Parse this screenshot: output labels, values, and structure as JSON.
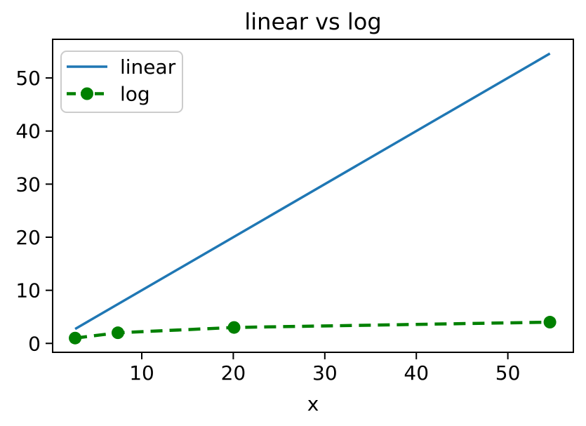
{
  "figure": {
    "background": "#ffffff",
    "frame_color": "#000000"
  },
  "chart_data": {
    "type": "line",
    "title": "linear vs log",
    "xlabel": "x",
    "ylabel": "",
    "x": [
      2.7183,
      7.3891,
      20.0855,
      54.5982
    ],
    "series": [
      {
        "name": "linear",
        "values": [
          2.7183,
          7.3891,
          20.0855,
          54.5982
        ],
        "color": "#1f77b4",
        "style": "solid",
        "marker": "none",
        "line_width": 3.5
      },
      {
        "name": "log",
        "values": [
          1,
          2,
          3,
          4
        ],
        "color": "#008000",
        "style": "dashed",
        "marker": "circle",
        "marker_size": 9,
        "line_width": 4.5
      }
    ],
    "xlim": [
      0.26,
      57.16
    ],
    "ylim": [
      -1.68,
      57.28
    ],
    "xticks": [
      10,
      20,
      30,
      40,
      50
    ],
    "yticks": [
      0,
      10,
      20,
      30,
      40,
      50
    ],
    "grid": false,
    "legend": {
      "position": "upper-left",
      "entries": [
        "linear",
        "log"
      ],
      "border_color": "#cccccc",
      "background": "#ffffff"
    }
  }
}
